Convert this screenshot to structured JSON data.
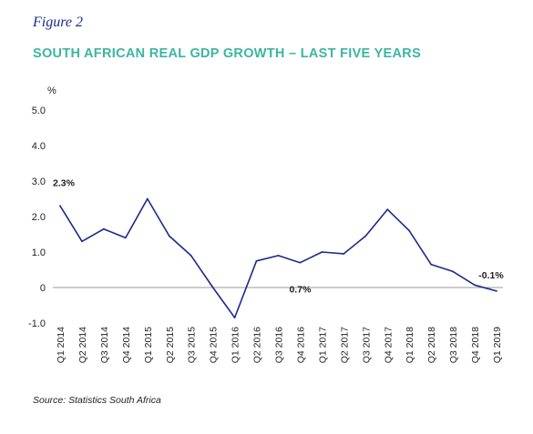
{
  "figure_label": "Figure 2",
  "title": "SOUTH AFRICAN REAL GDP GROWTH – LAST FIVE YEARS",
  "source": "Source: Statistics South Africa",
  "colors": {
    "line": "#1b2a8a",
    "title": "#3bb5a3",
    "axis": "#999999"
  },
  "chart_data": {
    "type": "line",
    "title": "SOUTH AFRICAN REAL GDP GROWTH – LAST FIVE YEARS",
    "xlabel": "",
    "ylabel": "%",
    "ylim": [
      -1.0,
      5.0
    ],
    "yticks": [
      {
        "value": 5.0,
        "label": "5.0"
      },
      {
        "value": 4.0,
        "label": "4.0"
      },
      {
        "value": 3.0,
        "label": "3.0"
      },
      {
        "value": 2.0,
        "label": "2.0"
      },
      {
        "value": 1.0,
        "label": "1.0"
      },
      {
        "value": 0,
        "label": "0"
      },
      {
        "value": -1.0,
        "label": "-1.0"
      }
    ],
    "grid": false,
    "categories": [
      "Q1 2014",
      "Q2 2014",
      "Q3 2014",
      "Q4 2014",
      "Q1 2015",
      "Q2 2015",
      "Q3 2015",
      "Q4 2015",
      "Q1 2016",
      "Q2 2016",
      "Q3 2016",
      "Q4 2016",
      "Q1 2017",
      "Q2 2017",
      "Q3 2017",
      "Q4 2017",
      "Q1 2018",
      "Q2 2018",
      "Q3 2018",
      "Q4 2018",
      "Q1 2019"
    ],
    "series": [
      {
        "values": [
          2.3,
          1.3,
          1.65,
          1.4,
          2.5,
          1.45,
          0.9,
          0.0,
          -0.85,
          0.75,
          0.9,
          0.7,
          1.0,
          0.95,
          1.45,
          2.2,
          1.6,
          0.65,
          0.45,
          0.07,
          -0.1
        ]
      }
    ],
    "annotations": [
      {
        "index": 0,
        "text": "2.3%"
      },
      {
        "index": 11,
        "text": "0.7%"
      },
      {
        "index": 20,
        "text": "-0.1%"
      }
    ]
  }
}
